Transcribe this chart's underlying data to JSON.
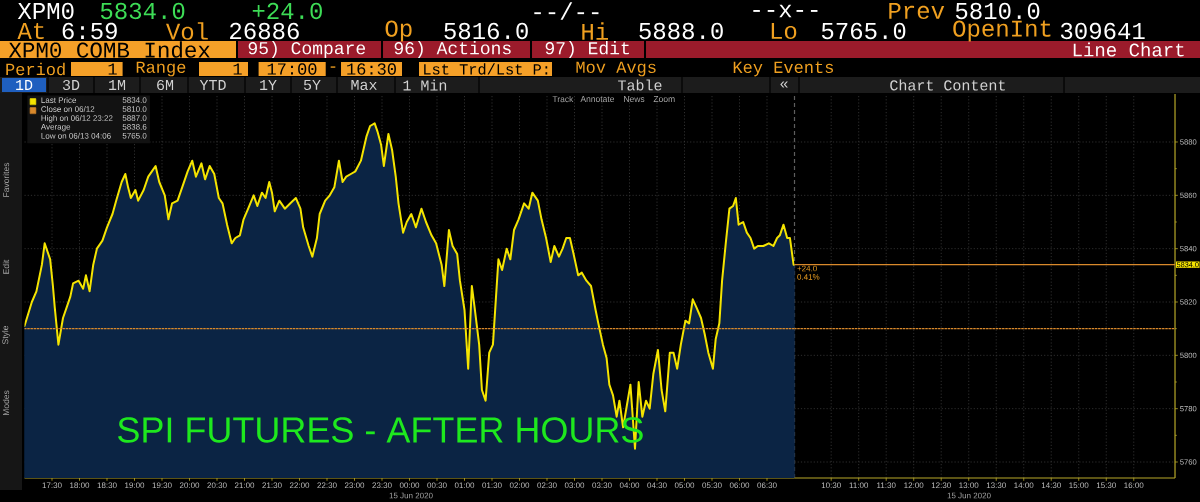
{
  "chart_data": [
    {
      "type": "area",
      "title": "SPI FUTURES  - AFTER HOURS",
      "x": [
        "2020-06-14T17:00",
        "2020-06-14T17:08",
        "2020-06-14T17:13",
        "2020-06-14T17:19",
        "2020-06-14T17:22",
        "2020-06-14T17:28",
        "2020-06-14T17:31",
        "2020-06-14T17:33",
        "2020-06-14T17:37",
        "2020-06-14T17:42",
        "2020-06-14T17:46",
        "2020-06-14T17:50",
        "2020-06-14T17:53",
        "2020-06-14T17:59",
        "2020-06-14T18:04",
        "2020-06-14T18:07",
        "2020-06-14T18:11",
        "2020-06-14T18:15",
        "2020-06-14T18:19",
        "2020-06-14T18:25",
        "2020-06-14T18:30",
        "2020-06-14T18:36",
        "2020-06-14T18:40",
        "2020-06-14T18:46",
        "2020-06-14T18:50",
        "2020-06-14T18:53",
        "2020-06-14T18:56",
        "2020-06-14T19:01",
        "2020-06-14T19:04",
        "2020-06-14T19:10",
        "2020-06-14T19:15",
        "2020-06-14T19:19",
        "2020-06-14T19:23",
        "2020-06-14T19:27",
        "2020-06-14T19:33",
        "2020-06-14T19:37",
        "2020-06-14T19:41",
        "2020-06-14T19:47",
        "2020-06-14T19:52",
        "2020-06-14T19:58",
        "2020-06-14T20:03",
        "2020-06-14T20:07",
        "2020-06-14T20:13",
        "2020-06-14T20:17",
        "2020-06-14T20:22",
        "2020-06-14T20:27",
        "2020-06-14T20:32",
        "2020-06-14T20:36",
        "2020-06-14T20:41",
        "2020-06-14T20:46",
        "2020-06-14T20:50",
        "2020-06-14T20:55",
        "2020-06-14T20:59",
        "2020-06-14T21:04",
        "2020-06-14T21:10",
        "2020-06-14T21:14",
        "2020-06-14T21:19",
        "2020-06-14T21:23",
        "2020-06-14T21:27",
        "2020-06-14T21:30",
        "2020-06-14T21:33",
        "2020-06-14T21:38",
        "2020-06-14T21:44",
        "2020-06-14T21:50",
        "2020-06-14T21:56",
        "2020-06-14T22:01",
        "2020-06-14T22:04",
        "2020-06-14T22:10",
        "2020-06-14T22:14",
        "2020-06-14T22:19",
        "2020-06-14T22:22",
        "2020-06-14T22:28",
        "2020-06-14T22:33",
        "2020-06-14T22:38",
        "2020-06-14T22:43",
        "2020-06-14T22:47",
        "2020-06-14T22:51",
        "2020-06-14T22:56",
        "2020-06-14T23:01",
        "2020-06-14T23:07",
        "2020-06-14T23:13",
        "2020-06-14T23:17",
        "2020-06-14T23:22",
        "2020-06-14T23:25",
        "2020-06-14T23:29",
        "2020-06-14T23:32",
        "2020-06-14T23:37",
        "2020-06-14T23:41",
        "2020-06-14T23:45",
        "2020-06-14T23:48",
        "2020-06-14T23:53",
        "2020-06-14T23:57",
        "2020-06-15T00:02",
        "2020-06-15T00:07",
        "2020-06-15T00:13",
        "2020-06-15T00:18",
        "2020-06-15T00:24",
        "2020-06-15T00:29",
        "2020-06-15T00:35",
        "2020-06-15T00:38",
        "2020-06-15T00:43",
        "2020-06-15T00:47",
        "2020-06-15T00:52",
        "2020-06-15T00:55",
        "2020-06-15T01:00",
        "2020-06-15T01:04",
        "2020-06-15T01:08",
        "2020-06-15T01:11",
        "2020-06-15T01:16",
        "2020-06-15T01:19",
        "2020-06-15T01:23",
        "2020-06-15T01:27",
        "2020-06-15T01:31",
        "2020-06-15T01:37",
        "2020-06-15T01:41",
        "2020-06-15T01:46",
        "2020-06-15T01:50",
        "2020-06-15T01:54",
        "2020-06-15T01:59",
        "2020-06-15T02:05",
        "2020-06-15T02:10",
        "2020-06-15T02:14",
        "2020-06-15T02:20",
        "2020-06-15T02:24",
        "2020-06-15T02:29",
        "2020-06-15T02:34",
        "2020-06-15T02:38",
        "2020-06-15T02:43",
        "2020-06-15T02:47",
        "2020-06-15T02:51",
        "2020-06-15T02:55",
        "2020-06-15T02:59",
        "2020-06-15T03:04",
        "2020-06-15T03:08",
        "2020-06-15T03:13",
        "2020-06-15T03:18",
        "2020-06-15T03:23",
        "2020-06-15T03:26",
        "2020-06-15T03:31",
        "2020-06-15T03:35",
        "2020-06-15T03:38",
        "2020-06-15T03:42",
        "2020-06-15T03:46",
        "2020-06-15T03:49",
        "2020-06-15T03:53",
        "2020-06-15T03:57",
        "2020-06-15T04:01",
        "2020-06-15T04:06",
        "2020-06-15T04:10",
        "2020-06-15T04:14",
        "2020-06-15T04:18",
        "2020-06-15T04:22",
        "2020-06-15T04:26",
        "2020-06-15T04:31",
        "2020-06-15T04:35",
        "2020-06-15T04:39",
        "2020-06-15T04:44",
        "2020-06-15T04:48",
        "2020-06-15T04:52",
        "2020-06-15T04:56",
        "2020-06-15T05:01",
        "2020-06-15T05:05",
        "2020-06-15T05:09",
        "2020-06-15T05:13",
        "2020-06-15T05:18",
        "2020-06-15T05:22",
        "2020-06-15T05:26",
        "2020-06-15T05:31",
        "2020-06-15T05:34",
        "2020-06-15T05:38",
        "2020-06-15T05:41",
        "2020-06-15T05:45",
        "2020-06-15T05:49",
        "2020-06-15T05:53",
        "2020-06-15T05:56",
        "2020-06-15T05:59",
        "2020-06-15T06:04",
        "2020-06-15T06:08",
        "2020-06-15T06:12",
        "2020-06-15T06:16",
        "2020-06-15T06:20",
        "2020-06-15T06:26",
        "2020-06-15T06:32",
        "2020-06-15T06:37",
        "2020-06-15T06:41",
        "2020-06-15T06:44",
        "2020-06-15T06:48",
        "2020-06-15T06:52",
        "2020-06-15T06:55",
        "2020-06-15T06:59"
      ],
      "series": [
        {
          "name": "Last Price",
          "color": "#f5e400",
          "values": [
            5811,
            5820,
            5824,
            5834,
            5842,
            5836,
            5826,
            5818,
            5804,
            5814,
            5818,
            5822,
            5827,
            5828,
            5825,
            5830,
            5824,
            5834,
            5840,
            5843,
            5848,
            5853,
            5858,
            5865,
            5868,
            5863,
            5859,
            5862,
            5858,
            5862,
            5867,
            5869,
            5871,
            5865,
            5860,
            5851,
            5857,
            5858,
            5863,
            5869,
            5873,
            5867,
            5872,
            5866,
            5871,
            5868,
            5859,
            5857,
            5849,
            5842,
            5844,
            5845,
            5851,
            5855,
            5860,
            5856,
            5861,
            5859,
            5865,
            5861,
            5854,
            5858,
            5855,
            5857,
            5859,
            5855,
            5848,
            5841,
            5837,
            5844,
            5853,
            5858,
            5860,
            5863,
            5873,
            5865,
            5867,
            5868,
            5869,
            5873,
            5882,
            5886,
            5887,
            5884,
            5879,
            5871,
            5883,
            5877,
            5867,
            5857,
            5846,
            5850,
            5853,
            5848,
            5855,
            5850,
            5845,
            5842,
            5834,
            5826,
            5847,
            5841,
            5838,
            5828,
            5817,
            5795,
            5826,
            5818,
            5804,
            5787,
            5783,
            5801,
            5804,
            5836,
            5832,
            5840,
            5836,
            5847,
            5851,
            5857,
            5855,
            5861,
            5858,
            5851,
            5844,
            5835,
            5841,
            5837,
            5840,
            5844,
            5844,
            5838,
            5830,
            5831,
            5828,
            5826,
            5817,
            5812,
            5804,
            5799,
            5789,
            5785,
            5777,
            5783,
            5773,
            5781,
            5789,
            5765,
            5790,
            5777,
            5783,
            5780,
            5793,
            5802,
            5787,
            5779,
            5801,
            5801,
            5795,
            5804,
            5813,
            5812,
            5821,
            5818,
            5814,
            5808,
            5801,
            5795,
            5806,
            5812,
            5828,
            5842,
            5855,
            5856,
            5859,
            5849,
            5850,
            5846,
            5844,
            5840,
            5841,
            5841,
            5842,
            5841,
            5844,
            5845,
            5849,
            5844,
            5844,
            5834
          ]
        }
      ],
      "xlim": [
        "2020-06-14T17:00",
        "2020-06-15T07:00"
      ],
      "ylim": [
        5754,
        5898
      ],
      "xticks": [
        {
          "value": "2020-06-14T17:30",
          "label": "17:30"
        },
        {
          "value": "2020-06-14T18:00",
          "label": "18:00"
        },
        {
          "value": "2020-06-14T18:30",
          "label": "18:30"
        },
        {
          "value": "2020-06-14T19:00",
          "label": "19:00"
        },
        {
          "value": "2020-06-14T19:30",
          "label": "19:30"
        },
        {
          "value": "2020-06-14T20:00",
          "label": "20:00"
        },
        {
          "value": "2020-06-14T20:30",
          "label": "20:30"
        },
        {
          "value": "2020-06-14T21:00",
          "label": "21:00"
        },
        {
          "value": "2020-06-14T21:30",
          "label": "21:30"
        },
        {
          "value": "2020-06-14T22:00",
          "label": "22:00"
        },
        {
          "value": "2020-06-14T22:30",
          "label": "22:30"
        },
        {
          "value": "2020-06-14T23:00",
          "label": "23:00"
        },
        {
          "value": "2020-06-14T23:30",
          "label": "23:30"
        },
        {
          "value": "2020-06-15T00:00",
          "label": "00:00"
        },
        {
          "value": "2020-06-15T00:30",
          "label": "00:30"
        },
        {
          "value": "2020-06-15T01:00",
          "label": "01:00"
        },
        {
          "value": "2020-06-15T01:30",
          "label": "01:30"
        },
        {
          "value": "2020-06-15T02:00",
          "label": "02:00"
        },
        {
          "value": "2020-06-15T02:30",
          "label": "02:30"
        },
        {
          "value": "2020-06-15T03:00",
          "label": "03:00"
        },
        {
          "value": "2020-06-15T03:30",
          "label": "03:30"
        },
        {
          "value": "2020-06-15T04:00",
          "label": "04:00"
        },
        {
          "value": "2020-06-15T04:30",
          "label": "04:30"
        },
        {
          "value": "2020-06-15T05:00",
          "label": "05:00"
        },
        {
          "value": "2020-06-15T05:30",
          "label": "05:30"
        },
        {
          "value": "2020-06-15T06:00",
          "label": "06:00"
        },
        {
          "value": "2020-06-15T06:30",
          "label": "06:30"
        }
      ],
      "yticks": [
        5760,
        5780,
        5800,
        5820,
        5840,
        5860,
        5880
      ],
      "tick_labels": "x",
      "grid": true,
      "legend": "top left",
      "ref_lines": [
        {
          "axis": "y",
          "value": 5810,
          "color": "#d9892b",
          "line_style": "dotted",
          "label": "Close on 06/12"
        }
      ],
      "annotations": [
        "XPM0",
        "5834.0",
        "+24.0",
        "--/--",
        "--x--",
        "Prev",
        "5810.0",
        "At",
        "6:59",
        "Vol",
        "26886",
        "Op",
        "5816.0",
        "Hi",
        "5888.0",
        "Lo",
        "5765.0",
        "OpenInt",
        "309641",
        "XPM0 COMB Index",
        "95) Compare",
        "96) Actions",
        "97) Edit",
        "Line Chart",
        "Period",
        "1",
        "Range",
        "1",
        "17:00",
        "-",
        "16:30",
        "Lst Trd/Lst P:",
        "Mov Avgs",
        "Key Events",
        "1D",
        "3D",
        "1M",
        "6M",
        "YTD",
        "1Y",
        "5Y",
        "Max",
        "1 Min",
        "Table",
        "«",
        "Chart Content",
        "Track",
        "Annotate",
        "News",
        "Zoom",
        "5834.0",
        "5810.0",
        "High on 06/12 23:22",
        "5887.0",
        "Average",
        "5838.6",
        "Low on 06/13 04:06",
        "5765.0",
        "15 Jun 2020",
        "Favorites",
        "Edit",
        "Style",
        "Modes",
        {
          "text": "+24.0",
          "x": "2020-06-15T06:59",
          "y": 5834
        },
        {
          "text": "0.41%",
          "x": "2020-06-15T06:59",
          "y": 5834
        }
      ]
    },
    {
      "type": "area",
      "xlim": [
        "2020-06-15T09:50",
        "2020-06-15T16:45"
      ],
      "ylim": [
        5754,
        5898
      ],
      "xticks": [
        {
          "value": "2020-06-15T10:30",
          "label": "10:30"
        },
        {
          "value": "2020-06-15T11:00",
          "label": "11:00"
        },
        {
          "value": "2020-06-15T11:30",
          "label": "11:30"
        },
        {
          "value": "2020-06-15T12:00",
          "label": "12:00"
        },
        {
          "value": "2020-06-15T12:30",
          "label": "12:30"
        },
        {
          "value": "2020-06-15T13:00",
          "label": "13:00"
        },
        {
          "value": "2020-06-15T13:30",
          "label": "13:30"
        },
        {
          "value": "2020-06-15T14:00",
          "label": "14:00"
        },
        {
          "value": "2020-06-15T14:30",
          "label": "14:30"
        },
        {
          "value": "2020-06-15T15:00",
          "label": "15:00"
        },
        {
          "value": "2020-06-15T15:30",
          "label": "15:30"
        },
        {
          "value": "2020-06-15T16:00",
          "label": "16:00"
        }
      ],
      "yticks": [
        5760,
        5780,
        5800,
        5820,
        5840,
        5860,
        5880
      ],
      "grid": true,
      "ref_lines": [
        {
          "axis": "y",
          "value": 5810,
          "color": "#d9892b",
          "line_style": "dotted"
        },
        {
          "axis": "y",
          "value": 5834,
          "color": "#d9892b",
          "label": "5834.0"
        }
      ],
      "annotations": [
        "15 Jun 2020"
      ]
    }
  ]
}
